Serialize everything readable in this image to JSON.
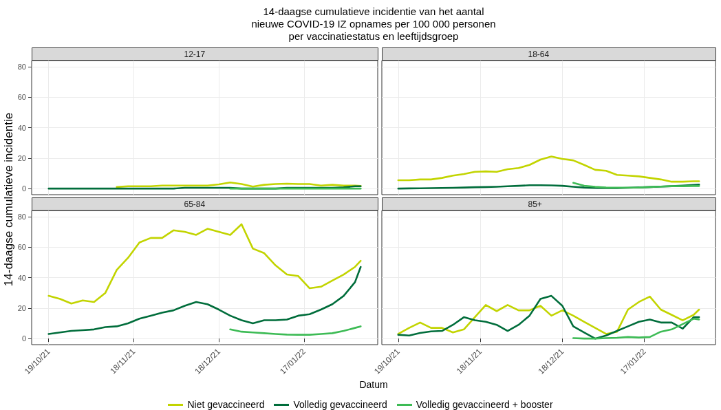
{
  "chart_data": [
    {
      "type": "line",
      "title": "14-daagse cumulatieve incidentie van het aantal\nnieuwe COVID-19 IZ opnames per 100 000 personen\nper vaccinatiestatus en leeftijdsgroep",
      "subtitle": "12-17",
      "ylabel": "14-daagse cumulatieve incidentie",
      "legend": "bottom",
      "grid": true,
      "tick_labels": "y",
      "xlim": [
        "2021-10-13",
        "2022-02-12"
      ],
      "xticks": [
        {
          "value": "2021-10-19",
          "label": null
        },
        {
          "value": "2021-11-18",
          "label": null
        },
        {
          "value": "2021-12-18",
          "label": null
        },
        {
          "value": "2022-01-17",
          "label": null
        }
      ],
      "ylim": [
        -4,
        84
      ],
      "yticks": [
        0,
        20,
        40,
        60,
        80
      ],
      "x": [
        "2021-10-19",
        "2021-10-23",
        "2021-10-27",
        "2021-10-31",
        "2021-11-04",
        "2021-11-08",
        "2021-11-12",
        "2021-11-16",
        "2021-11-20",
        "2021-11-24",
        "2021-11-28",
        "2021-12-02",
        "2021-12-06",
        "2021-12-10",
        "2021-12-14",
        "2021-12-18",
        "2021-12-22",
        "2021-12-26",
        "2021-12-30",
        "2022-01-03",
        "2022-01-07",
        "2022-01-11",
        "2022-01-15",
        "2022-01-19",
        "2022-01-23",
        "2022-01-27",
        "2022-01-31",
        "2022-02-04",
        "2022-02-06"
      ],
      "series": [
        {
          "name": "Niet gevaccineerd",
          "color": "#c2d400",
          "values": [
            null,
            null,
            null,
            null,
            null,
            null,
            1,
            1.5,
            1.5,
            1.5,
            2,
            2,
            2,
            2,
            2,
            2.8,
            4,
            3,
            1.3,
            2.5,
            3,
            3.2,
            3,
            3,
            2,
            2.5,
            2,
            2,
            1.7
          ]
        },
        {
          "name": "Volledig gevaccineerd",
          "color": "#006d3b",
          "values": [
            0,
            0,
            0,
            0,
            0,
            0,
            0,
            0,
            0,
            0,
            0,
            0,
            0.5,
            0.5,
            0.5,
            0.5,
            0.5,
            0,
            0,
            0,
            0,
            0.5,
            0.5,
            0.5,
            0.5,
            0.5,
            0.8,
            1.5,
            1.5
          ]
        },
        {
          "name": "Volledig gevaccineerd + booster",
          "color": "#3dbb55",
          "values": [
            null,
            null,
            null,
            null,
            null,
            null,
            null,
            null,
            null,
            null,
            null,
            null,
            null,
            null,
            null,
            null,
            0,
            0,
            0,
            0,
            0,
            0,
            0,
            0,
            0,
            0,
            0,
            0,
            0
          ]
        }
      ]
    },
    {
      "type": "line",
      "subtitle": "18-64",
      "grid": true,
      "tick_labels": false,
      "xlim": [
        "2021-10-13",
        "2022-02-12"
      ],
      "xticks": [
        {
          "value": "2021-10-19",
          "label": null
        },
        {
          "value": "2021-11-18",
          "label": null
        },
        {
          "value": "2021-12-18",
          "label": null
        },
        {
          "value": "2022-01-17",
          "label": null
        }
      ],
      "ylim": [
        -4,
        84
      ],
      "yticks": [
        0,
        20,
        40,
        60,
        80
      ],
      "x": [
        "2021-10-19",
        "2021-10-23",
        "2021-10-27",
        "2021-10-31",
        "2021-11-04",
        "2021-11-08",
        "2021-11-12",
        "2021-11-16",
        "2021-11-20",
        "2021-11-24",
        "2021-11-28",
        "2021-12-02",
        "2021-12-06",
        "2021-12-10",
        "2021-12-14",
        "2021-12-18",
        "2021-12-22",
        "2021-12-26",
        "2021-12-30",
        "2022-01-03",
        "2022-01-07",
        "2022-01-11",
        "2022-01-15",
        "2022-01-19",
        "2022-01-23",
        "2022-01-27",
        "2022-01-31",
        "2022-02-04",
        "2022-02-06"
      ],
      "series": [
        {
          "color": "#c2d400",
          "values": [
            5.5,
            5.5,
            6,
            6,
            7,
            8.5,
            9.5,
            11,
            11.3,
            11,
            12.7,
            13.5,
            15.5,
            19,
            21,
            19.5,
            18.5,
            15.5,
            12.3,
            11.7,
            9,
            8.5,
            8,
            7,
            6,
            4.5,
            4.5,
            4.8,
            4.8
          ]
        },
        {
          "color": "#006d3b",
          "values": [
            0,
            0.1,
            0.2,
            0.3,
            0.4,
            0.5,
            0.7,
            0.9,
            1,
            1.2,
            1.5,
            1.8,
            2.2,
            2.2,
            2.1,
            1.8,
            1.2,
            0.7,
            0.4,
            0.3,
            0.3,
            0.5,
            0.8,
            1,
            1.3,
            1.6,
            2,
            2.4,
            2.6
          ]
        },
        {
          "color": "#3dbb55",
          "values": [
            null,
            null,
            null,
            null,
            null,
            null,
            null,
            null,
            null,
            null,
            null,
            null,
            null,
            null,
            null,
            null,
            3.8,
            1.9,
            1.2,
            0.7,
            0.6,
            0.6,
            0.7,
            1,
            1.3,
            1.6,
            1.6,
            1.7,
            1.7
          ]
        }
      ]
    },
    {
      "type": "line",
      "subtitle": "65-84",
      "xlabel": "Datum",
      "grid": true,
      "xlim": [
        "2021-10-13",
        "2022-02-12"
      ],
      "xticks": [
        {
          "value": "2021-10-19",
          "label": "19/10/21"
        },
        {
          "value": "2021-11-18",
          "label": "18/11/21"
        },
        {
          "value": "2021-12-18",
          "label": "18/12/21"
        },
        {
          "value": "2022-01-17",
          "label": "17/01/22"
        }
      ],
      "ylim": [
        -4,
        84
      ],
      "yticks": [
        0,
        20,
        40,
        60,
        80
      ],
      "x": [
        "2021-10-19",
        "2021-10-23",
        "2021-10-27",
        "2021-10-31",
        "2021-11-04",
        "2021-11-08",
        "2021-11-12",
        "2021-11-16",
        "2021-11-20",
        "2021-11-24",
        "2021-11-28",
        "2021-12-02",
        "2021-12-06",
        "2021-12-10",
        "2021-12-14",
        "2021-12-18",
        "2021-12-22",
        "2021-12-26",
        "2021-12-30",
        "2022-01-03",
        "2022-01-07",
        "2022-01-11",
        "2022-01-15",
        "2022-01-19",
        "2022-01-23",
        "2022-01-27",
        "2022-01-31",
        "2022-02-04",
        "2022-02-06"
      ],
      "series": [
        {
          "color": "#c2d400",
          "values": [
            28,
            26,
            23,
            25,
            24,
            30,
            45,
            53,
            63,
            66,
            66,
            71,
            70,
            68,
            72,
            70,
            68,
            75,
            59,
            56,
            48,
            42,
            41,
            33,
            34,
            38,
            42,
            47,
            51
          ]
        },
        {
          "color": "#006d3b",
          "values": [
            3,
            4,
            5,
            5.5,
            6,
            7.5,
            8,
            10,
            13,
            15,
            17,
            18.5,
            21.5,
            24,
            22.5,
            19,
            15,
            12,
            10,
            12,
            12,
            12.5,
            15,
            16,
            19,
            22.5,
            28,
            37,
            47
          ]
        },
        {
          "color": "#3dbb55",
          "values": [
            null,
            null,
            null,
            null,
            null,
            null,
            null,
            null,
            null,
            null,
            null,
            null,
            null,
            null,
            null,
            null,
            6,
            4.5,
            4,
            3.5,
            3,
            2.6,
            2.5,
            2.5,
            3,
            3.5,
            5,
            7,
            8
          ]
        }
      ]
    },
    {
      "type": "line",
      "subtitle": "85+",
      "grid": true,
      "tick_labels": "x",
      "xlim": [
        "2021-10-13",
        "2022-02-12"
      ],
      "xticks": [
        {
          "value": "2021-10-19",
          "label": "19/10/21"
        },
        {
          "value": "2021-11-18",
          "label": "18/11/21"
        },
        {
          "value": "2021-12-18",
          "label": "18/12/21"
        },
        {
          "value": "2022-01-17",
          "label": "17/01/22"
        }
      ],
      "ylim": [
        -4,
        84
      ],
      "yticks": [
        0,
        20,
        40,
        60,
        80
      ],
      "x": [
        "2021-10-19",
        "2021-10-23",
        "2021-10-27",
        "2021-10-31",
        "2021-11-04",
        "2021-11-08",
        "2021-11-12",
        "2021-11-16",
        "2021-11-20",
        "2021-11-24",
        "2021-11-28",
        "2021-12-02",
        "2021-12-06",
        "2021-12-10",
        "2021-12-14",
        "2021-12-18",
        "2021-12-22",
        "2021-12-26",
        "2021-12-30",
        "2022-01-03",
        "2022-01-07",
        "2022-01-11",
        "2022-01-15",
        "2022-01-19",
        "2022-01-23",
        "2022-01-27",
        "2022-01-31",
        "2022-02-04",
        "2022-02-06"
      ],
      "series": [
        {
          "color": "#c2d400",
          "values": [
            3,
            7,
            10.5,
            7,
            7,
            4,
            6,
            14,
            22,
            18,
            22,
            18.5,
            18.5,
            21.5,
            15,
            18.5,
            15,
            11,
            7,
            3,
            4.5,
            19,
            24,
            27.5,
            19,
            15.5,
            12,
            15.5,
            19
          ]
        },
        {
          "color": "#006d3b",
          "values": [
            2.5,
            2,
            3.7,
            4.7,
            5,
            9,
            14,
            12,
            11,
            9,
            5,
            9,
            15,
            26,
            28,
            21.5,
            8,
            4,
            0,
            2,
            5,
            8,
            11,
            12.5,
            10.5,
            10.5,
            6.5,
            14,
            14
          ]
        },
        {
          "color": "#3dbb55",
          "values": [
            null,
            null,
            null,
            null,
            null,
            null,
            null,
            null,
            null,
            null,
            null,
            null,
            null,
            null,
            null,
            null,
            0.3,
            0,
            0,
            0.3,
            0.5,
            1,
            0.7,
            1,
            4.5,
            6,
            9.5,
            13,
            12.5
          ]
        }
      ]
    }
  ]
}
